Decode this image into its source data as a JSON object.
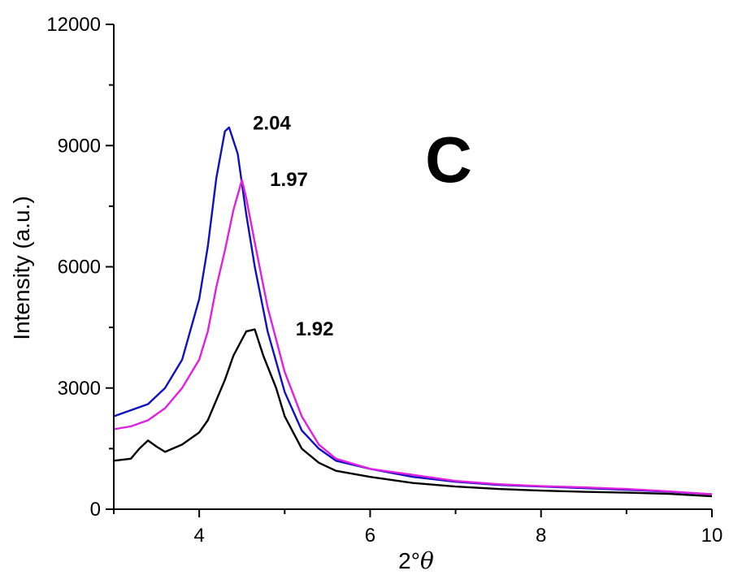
{
  "chart_data": {
    "type": "line",
    "xlabel_prefix": "2°",
    "xlabel_symbol": "θ",
    "ylabel": "Intensity (a.u.)",
    "xlim": [
      3,
      10
    ],
    "ylim": [
      0,
      12000
    ],
    "xticks": [
      4,
      6,
      8,
      10
    ],
    "yticks": [
      0,
      3000,
      6000,
      9000,
      12000
    ],
    "panel_label": "C",
    "grid": false,
    "series": [
      {
        "color": "#1010c0",
        "points": [
          [
            3.0,
            2300
          ],
          [
            3.2,
            2450
          ],
          [
            3.4,
            2600
          ],
          [
            3.6,
            3000
          ],
          [
            3.8,
            3700
          ],
          [
            4.0,
            5200
          ],
          [
            4.1,
            6500
          ],
          [
            4.2,
            8200
          ],
          [
            4.3,
            9350
          ],
          [
            4.35,
            9450
          ],
          [
            4.45,
            8800
          ],
          [
            4.55,
            7300
          ],
          [
            4.65,
            6000
          ],
          [
            4.8,
            4400
          ],
          [
            5.0,
            2900
          ],
          [
            5.2,
            1950
          ],
          [
            5.4,
            1500
          ],
          [
            5.6,
            1200
          ],
          [
            6.0,
            1000
          ],
          [
            6.5,
            800
          ],
          [
            7.0,
            680
          ],
          [
            7.5,
            600
          ],
          [
            8.0,
            560
          ],
          [
            8.5,
            520
          ],
          [
            9.0,
            480
          ],
          [
            9.5,
            430
          ],
          [
            10.0,
            370
          ]
        ]
      },
      {
        "color": "#e020e0",
        "points": [
          [
            3.0,
            1980
          ],
          [
            3.2,
            2050
          ],
          [
            3.4,
            2200
          ],
          [
            3.6,
            2500
          ],
          [
            3.8,
            3000
          ],
          [
            4.0,
            3700
          ],
          [
            4.1,
            4400
          ],
          [
            4.2,
            5500
          ],
          [
            4.3,
            6400
          ],
          [
            4.4,
            7400
          ],
          [
            4.5,
            8150
          ],
          [
            4.55,
            7700
          ],
          [
            4.65,
            6600
          ],
          [
            4.8,
            5000
          ],
          [
            5.0,
            3400
          ],
          [
            5.2,
            2300
          ],
          [
            5.4,
            1600
          ],
          [
            5.6,
            1250
          ],
          [
            6.0,
            1000
          ],
          [
            6.5,
            850
          ],
          [
            7.0,
            700
          ],
          [
            7.5,
            620
          ],
          [
            8.0,
            570
          ],
          [
            8.5,
            540
          ],
          [
            9.0,
            500
          ],
          [
            9.5,
            440
          ],
          [
            10.0,
            370
          ]
        ]
      },
      {
        "color": "#000000",
        "points": [
          [
            3.0,
            1200
          ],
          [
            3.2,
            1250
          ],
          [
            3.3,
            1500
          ],
          [
            3.4,
            1700
          ],
          [
            3.5,
            1550
          ],
          [
            3.6,
            1420
          ],
          [
            3.8,
            1600
          ],
          [
            4.0,
            1900
          ],
          [
            4.1,
            2200
          ],
          [
            4.2,
            2700
          ],
          [
            4.3,
            3200
          ],
          [
            4.4,
            3800
          ],
          [
            4.5,
            4200
          ],
          [
            4.55,
            4400
          ],
          [
            4.65,
            4450
          ],
          [
            4.75,
            3800
          ],
          [
            4.9,
            3000
          ],
          [
            5.0,
            2300
          ],
          [
            5.2,
            1500
          ],
          [
            5.4,
            1150
          ],
          [
            5.6,
            950
          ],
          [
            6.0,
            800
          ],
          [
            6.5,
            650
          ],
          [
            7.0,
            560
          ],
          [
            7.5,
            500
          ],
          [
            8.0,
            460
          ],
          [
            8.5,
            430
          ],
          [
            9.0,
            410
          ],
          [
            9.5,
            380
          ],
          [
            10.0,
            320
          ]
        ]
      }
    ],
    "annotations": [
      {
        "text": "2.04",
        "x": 4.85,
        "y": 9400
      },
      {
        "text": "1.97",
        "x": 5.05,
        "y": 8000
      },
      {
        "text": "1.92",
        "x": 5.35,
        "y": 4300
      }
    ]
  }
}
